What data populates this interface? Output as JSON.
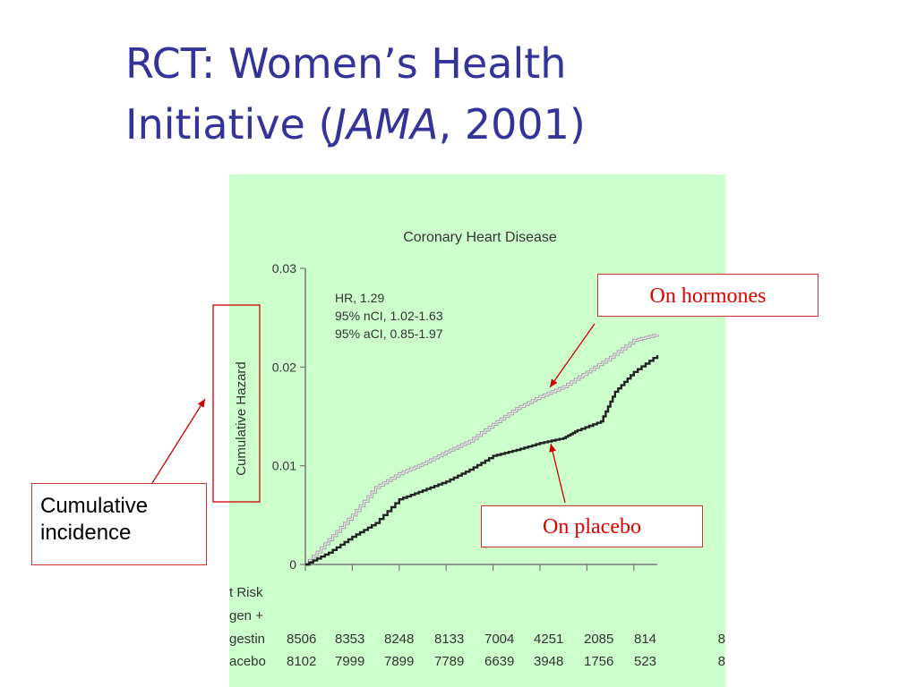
{
  "slide": {
    "title_line1": "RCT: Women’s Health",
    "title_line2_prefix": "Initiative (",
    "title_line2_italic": "JAMA",
    "title_line2_suffix": ", 2001)"
  },
  "chart_data": {
    "type": "line",
    "title": "Coronary Heart Disease",
    "ylabel": "Cumulative Hazard",
    "xlabel": "",
    "ylim": [
      0,
      0.03
    ],
    "yticks": [
      "0",
      "0.01",
      "0.02",
      "0.03"
    ],
    "background_color": "#ccffcc",
    "grid": false,
    "stats": [
      "HR, 1.29",
      "95% nCI, 1.02-1.63",
      "95% aCI, 0.85-1.97"
    ],
    "series": [
      {
        "role": "hormones",
        "color": "#a0a0a0",
        "x": [
          0,
          0.5,
          1,
          1.5,
          2,
          2.5,
          3,
          3.5,
          4,
          4.5,
          5,
          5.5,
          6,
          6.5,
          7,
          7.5
        ],
        "values": [
          0,
          0.0025,
          0.005,
          0.0078,
          0.0092,
          0.0102,
          0.0114,
          0.0125,
          0.0142,
          0.0158,
          0.017,
          0.018,
          0.0195,
          0.021,
          0.0227,
          0.0233
        ]
      },
      {
        "role": "placebo",
        "color": "#222222",
        "x": [
          0,
          0.5,
          1,
          1.5,
          2,
          2.5,
          3,
          3.5,
          4,
          4.5,
          5,
          5.5,
          5.8,
          6.3,
          6.6,
          7.0,
          7.5
        ],
        "values": [
          0,
          0.0012,
          0.0028,
          0.0042,
          0.0066,
          0.0075,
          0.0084,
          0.0096,
          0.011,
          0.0116,
          0.0123,
          0.0128,
          0.0136,
          0.0145,
          0.0175,
          0.0195,
          0.0212
        ]
      }
    ],
    "at_risk": {
      "heading": "t Risk",
      "rows": [
        {
          "label_line1": "gen +",
          "label_line2": "gestin",
          "values": [
            "8506",
            "8353",
            "8248",
            "8133",
            "7004",
            "4251",
            "2085",
            "814",
            "8"
          ]
        },
        {
          "label_line1": "",
          "label_line2": "acebo",
          "values": [
            "8102",
            "7999",
            "7899",
            "7789",
            "6639",
            "3948",
            "1756",
            "523",
            "8"
          ]
        }
      ]
    }
  },
  "callouts": {
    "hormones": "On hormones",
    "placebo": "On placebo",
    "incidence_line1": "Cumulative",
    "incidence_line2": "incidence"
  }
}
